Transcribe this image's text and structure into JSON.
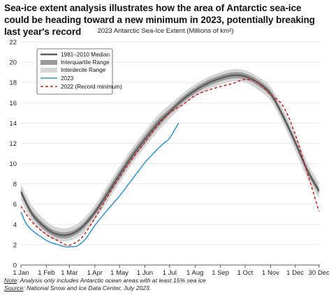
{
  "title": "Sea-ice extent analysis illustrates how the area of Antarctic sea-ice could be heading toward a new minimum in 2023, potentially breaking last year's record",
  "subtitle": "2023 Antarctic Sea-Ice Extent (Millions of km²)",
  "notes": {
    "note_label": "Note",
    "note_text": ": Analysis only includes Antarctic ocean areas with at least 15% sea ice",
    "source_label": "Source",
    "source_text": ": National Snow and Ice Data Center, July 2023."
  },
  "colors": {
    "median": "#5a5a5a",
    "interquartile": "#9a9a9a",
    "interdecile": "#d6d6d6",
    "y2023": "#2a93d5",
    "y2022": "#cc1f1f"
  },
  "chart_data": {
    "type": "line",
    "title": "2023 Antarctic Sea-Ice Extent (Millions of km²)",
    "xlabel": "",
    "ylabel": "",
    "ylim": [
      0,
      22
    ],
    "yticks": [
      0,
      2,
      4,
      6,
      8,
      10,
      12,
      14,
      16,
      18,
      20,
      22
    ],
    "xlim": [
      1,
      365
    ],
    "xticks": [
      {
        "day": 1,
        "label": "1 Jan"
      },
      {
        "day": 32,
        "label": "1 Feb"
      },
      {
        "day": 60,
        "label": "1 Mar"
      },
      {
        "day": 91,
        "label": "1 Apr"
      },
      {
        "day": 121,
        "label": "1 May"
      },
      {
        "day": 152,
        "label": "1 Jun"
      },
      {
        "day": 182,
        "label": "1 Jul"
      },
      {
        "day": 213,
        "label": "1 Aug"
      },
      {
        "day": 244,
        "label": "1 Sep"
      },
      {
        "day": 274,
        "label": "1 Oct"
      },
      {
        "day": 305,
        "label": "1 Nov"
      },
      {
        "day": 335,
        "label": "1 Dec"
      },
      {
        "day": 364,
        "label": "30 Dec"
      }
    ],
    "grid": "horizontal",
    "legend": "top-left",
    "series": [
      {
        "name": "1981–2010 Median",
        "style": "median",
        "x": [
          1,
          15,
          32,
          46,
          60,
          75,
          91,
          106,
          121,
          136,
          152,
          167,
          182,
          198,
          213,
          228,
          244,
          259,
          274,
          289,
          305,
          320,
          335,
          350,
          364
        ],
        "y": [
          7.2,
          5.0,
          3.6,
          3.0,
          3.0,
          3.7,
          5.2,
          7.0,
          8.9,
          10.7,
          12.4,
          13.9,
          15.1,
          16.3,
          17.2,
          17.9,
          18.4,
          18.7,
          18.6,
          18.0,
          16.9,
          14.7,
          12.1,
          9.3,
          7.3
        ]
      },
      {
        "name": "Interquartile Range",
        "style": "iqr",
        "x": [
          1,
          15,
          32,
          46,
          60,
          75,
          91,
          106,
          121,
          136,
          152,
          167,
          182,
          198,
          213,
          228,
          244,
          259,
          274,
          289,
          305,
          320,
          335,
          350,
          364
        ],
        "y_low": [
          6.9,
          4.7,
          3.3,
          2.7,
          2.7,
          3.4,
          4.9,
          6.6,
          8.5,
          10.3,
          12.0,
          13.5,
          14.8,
          16.0,
          16.9,
          17.6,
          18.1,
          18.4,
          18.3,
          17.7,
          16.6,
          14.4,
          11.8,
          9.0,
          7.0
        ],
        "y_high": [
          7.5,
          5.3,
          3.9,
          3.3,
          3.3,
          4.0,
          5.5,
          7.4,
          9.3,
          11.1,
          12.8,
          14.3,
          15.4,
          16.6,
          17.5,
          18.2,
          18.7,
          19.0,
          18.9,
          18.3,
          17.2,
          15.0,
          12.4,
          9.6,
          7.6
        ]
      },
      {
        "name": "Interdecile Range",
        "style": "idr",
        "x": [
          1,
          15,
          32,
          46,
          60,
          75,
          91,
          106,
          121,
          136,
          152,
          167,
          182,
          198,
          213,
          228,
          244,
          259,
          274,
          289,
          305,
          320,
          335,
          350,
          364
        ],
        "y_low": [
          6.4,
          4.3,
          2.9,
          2.4,
          2.4,
          3.0,
          4.5,
          6.2,
          8.1,
          9.9,
          11.6,
          13.1,
          14.4,
          15.7,
          16.6,
          17.3,
          17.8,
          18.1,
          18.0,
          17.3,
          16.2,
          14.0,
          11.3,
          8.5,
          6.6
        ],
        "y_high": [
          8.0,
          5.8,
          4.3,
          3.7,
          3.7,
          4.4,
          5.9,
          7.8,
          9.7,
          11.5,
          13.2,
          14.7,
          15.8,
          16.9,
          17.8,
          18.5,
          19.0,
          19.3,
          19.2,
          18.6,
          17.6,
          15.4,
          12.9,
          10.1,
          8.1
        ]
      },
      {
        "name": "2023",
        "style": "solid",
        "x": [
          1,
          8,
          15,
          25,
          35,
          46,
          55,
          62,
          70,
          80,
          91,
          106,
          121,
          136,
          152,
          160,
          167,
          175,
          182,
          188,
          193
        ],
        "y": [
          5.2,
          4.0,
          3.4,
          2.8,
          2.3,
          2.0,
          1.8,
          1.8,
          1.9,
          2.6,
          3.9,
          5.4,
          6.8,
          8.4,
          10.1,
          10.8,
          11.4,
          12.0,
          12.5,
          13.3,
          14.0
        ]
      },
      {
        "name": "2022 (Record minimum)",
        "style": "dashed",
        "x": [
          1,
          15,
          32,
          46,
          55,
          62,
          75,
          91,
          106,
          121,
          136,
          152,
          167,
          182,
          198,
          213,
          228,
          244,
          259,
          274,
          289,
          305,
          320,
          335,
          350,
          364
        ],
        "y": [
          5.8,
          4.2,
          3.0,
          2.4,
          2.0,
          2.0,
          2.7,
          4.6,
          6.7,
          8.6,
          10.4,
          12.1,
          13.7,
          15.0,
          15.8,
          16.7,
          17.2,
          17.6,
          17.9,
          18.3,
          18.0,
          16.8,
          15.7,
          12.9,
          9.0,
          5.3
        ]
      }
    ]
  }
}
